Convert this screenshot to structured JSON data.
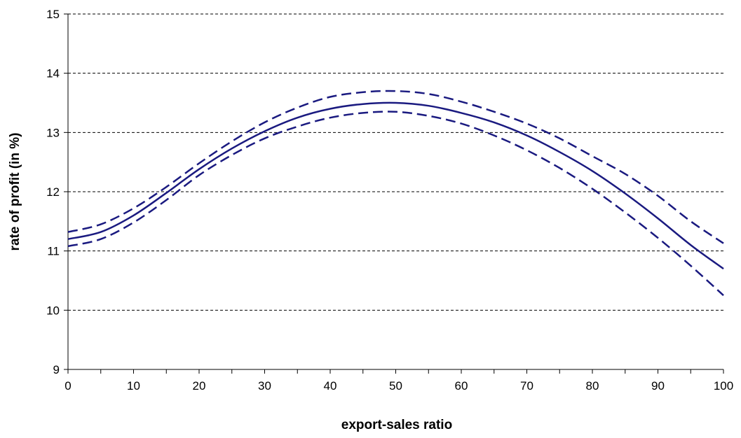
{
  "chart_data": {
    "type": "line",
    "title": "",
    "xlabel": "export-sales ratio",
    "ylabel": "rate of profit (in %)",
    "xlim": [
      0,
      100
    ],
    "ylim": [
      9,
      15
    ],
    "x_ticks": [
      0,
      10,
      20,
      30,
      40,
      50,
      60,
      70,
      80,
      90,
      100
    ],
    "y_ticks": [
      9,
      10,
      11,
      12,
      13,
      14,
      15
    ],
    "grid": "horizontal dashed",
    "legend": "none",
    "line_color": "#1a1a80",
    "x": [
      0,
      5,
      10,
      15,
      20,
      25,
      30,
      35,
      40,
      45,
      50,
      55,
      60,
      65,
      70,
      75,
      80,
      85,
      90,
      95,
      100
    ],
    "series": [
      {
        "style": "solid",
        "values": [
          11.2,
          11.32,
          11.6,
          11.98,
          12.38,
          12.73,
          13.02,
          13.25,
          13.4,
          13.48,
          13.5,
          13.45,
          13.33,
          13.17,
          12.95,
          12.67,
          12.35,
          11.97,
          11.55,
          11.1,
          10.7
        ]
      },
      {
        "style": "dashed",
        "values": [
          11.32,
          11.45,
          11.72,
          12.08,
          12.48,
          12.85,
          13.17,
          13.42,
          13.6,
          13.68,
          13.7,
          13.65,
          13.52,
          13.35,
          13.15,
          12.9,
          12.6,
          12.3,
          11.93,
          11.5,
          11.13
        ]
      },
      {
        "style": "dashed",
        "values": [
          11.08,
          11.2,
          11.48,
          11.86,
          12.28,
          12.62,
          12.9,
          13.1,
          13.25,
          13.33,
          13.35,
          13.28,
          13.15,
          12.95,
          12.7,
          12.4,
          12.05,
          11.65,
          11.22,
          10.75,
          10.25
        ]
      }
    ]
  }
}
